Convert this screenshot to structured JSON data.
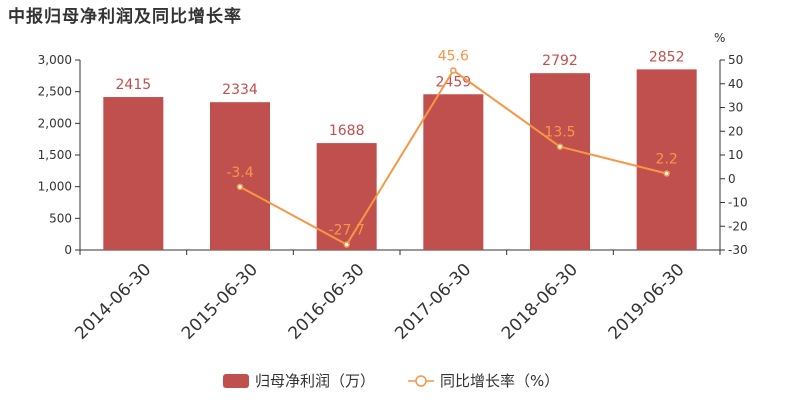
{
  "chart_data": {
    "type": "bar",
    "title": "中报归母净利润及同比增长率",
    "categories": [
      "2014-06-30",
      "2015-06-30",
      "2016-06-30",
      "2017-06-30",
      "2018-06-30",
      "2019-06-30"
    ],
    "series": [
      {
        "name": "归母净利润（万）",
        "type": "bar",
        "axis": "left",
        "color": "#c0504d",
        "label_color": "#c0504d",
        "values": [
          2415,
          2334,
          1688,
          2459,
          2792,
          2852
        ]
      },
      {
        "name": "同比增长率（%）",
        "type": "line",
        "axis": "right",
        "color": "#f79646",
        "label_color": "#f79646",
        "values": [
          null,
          -3.4,
          -27.7,
          45.6,
          13.5,
          2.2
        ],
        "labels": [
          "",
          "-3.4",
          "-27.7",
          "45.6",
          "13.5",
          "2.2"
        ]
      }
    ],
    "y_left": {
      "min": 0,
      "max": 3000,
      "ticks": [
        0,
        500,
        1000,
        1500,
        2000,
        2500,
        3000
      ],
      "tick_labels": [
        "0",
        "500",
        "1,000",
        "1,500",
        "2,000",
        "2,500",
        "3,000"
      ]
    },
    "y_right": {
      "min": -30,
      "max": 50,
      "ticks": [
        -30,
        -20,
        -10,
        0,
        10,
        20,
        30,
        40,
        50
      ],
      "tick_labels": [
        "-30",
        "-20",
        "-10",
        "0",
        "10",
        "20",
        "30",
        "40",
        "50"
      ],
      "unit_label": "%"
    },
    "grid": false,
    "legend_position": "bottom"
  }
}
